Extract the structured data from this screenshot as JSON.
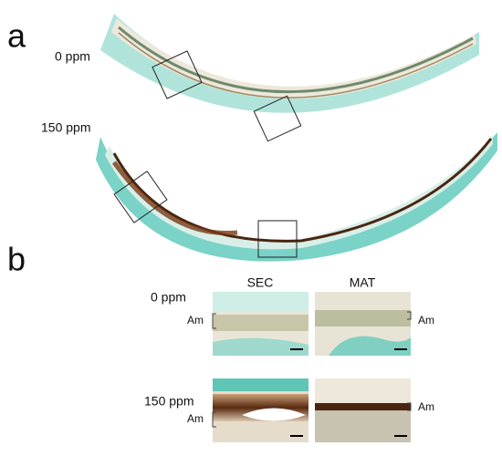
{
  "panel_a": {
    "label": "a",
    "rows": [
      {
        "label": "0 ppm"
      },
      {
        "label": "150 ppm"
      }
    ]
  },
  "panel_b": {
    "label": "b",
    "columns": [
      "SEC",
      "MAT"
    ],
    "rows": [
      {
        "label": "0 ppm",
        "annotations": [
          "Am",
          "Am"
        ]
      },
      {
        "label": "150 ppm",
        "annotations": [
          "Am",
          "Am"
        ]
      }
    ]
  }
}
